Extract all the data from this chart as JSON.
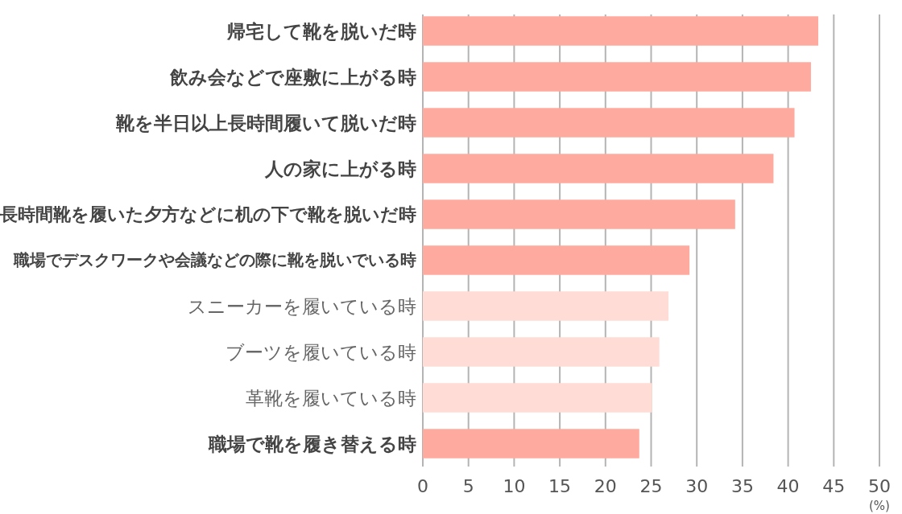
{
  "chart_data": {
    "type": "bar",
    "orientation": "horizontal",
    "categories": [
      "帰宅して靴を脱いだ時",
      "飲み会などで座敷に上がる時",
      "靴を半日以上長時間履いて脱いだ時",
      "人の家に上がる時",
      "長時間靴を履いた夕方などに机の下で靴を脱いだ時",
      "職場でデスクワークや会議などの際に靴を脱いでいる時",
      "スニーカーを履いている時",
      "ブーツを履いている時",
      "革靴を履いている時",
      "職場で靴を履き替える時"
    ],
    "values": [
      43.3,
      42.5,
      40.7,
      38.4,
      34.2,
      29.2,
      26.9,
      25.9,
      25.1,
      23.7
    ],
    "colors": [
      "#ffaa9e",
      "#ffaa9e",
      "#ffaa9e",
      "#ffaa9e",
      "#ffaa9e",
      "#ffaa9e",
      "#ffdcd6",
      "#ffdcd6",
      "#ffdcd6",
      "#ffaa9e"
    ],
    "xlabel": "(%)",
    "xlim": [
      0,
      50
    ],
    "xticks": [
      0,
      5,
      10,
      15,
      20,
      25,
      30,
      35,
      40,
      45,
      50
    ],
    "grid": "x"
  }
}
